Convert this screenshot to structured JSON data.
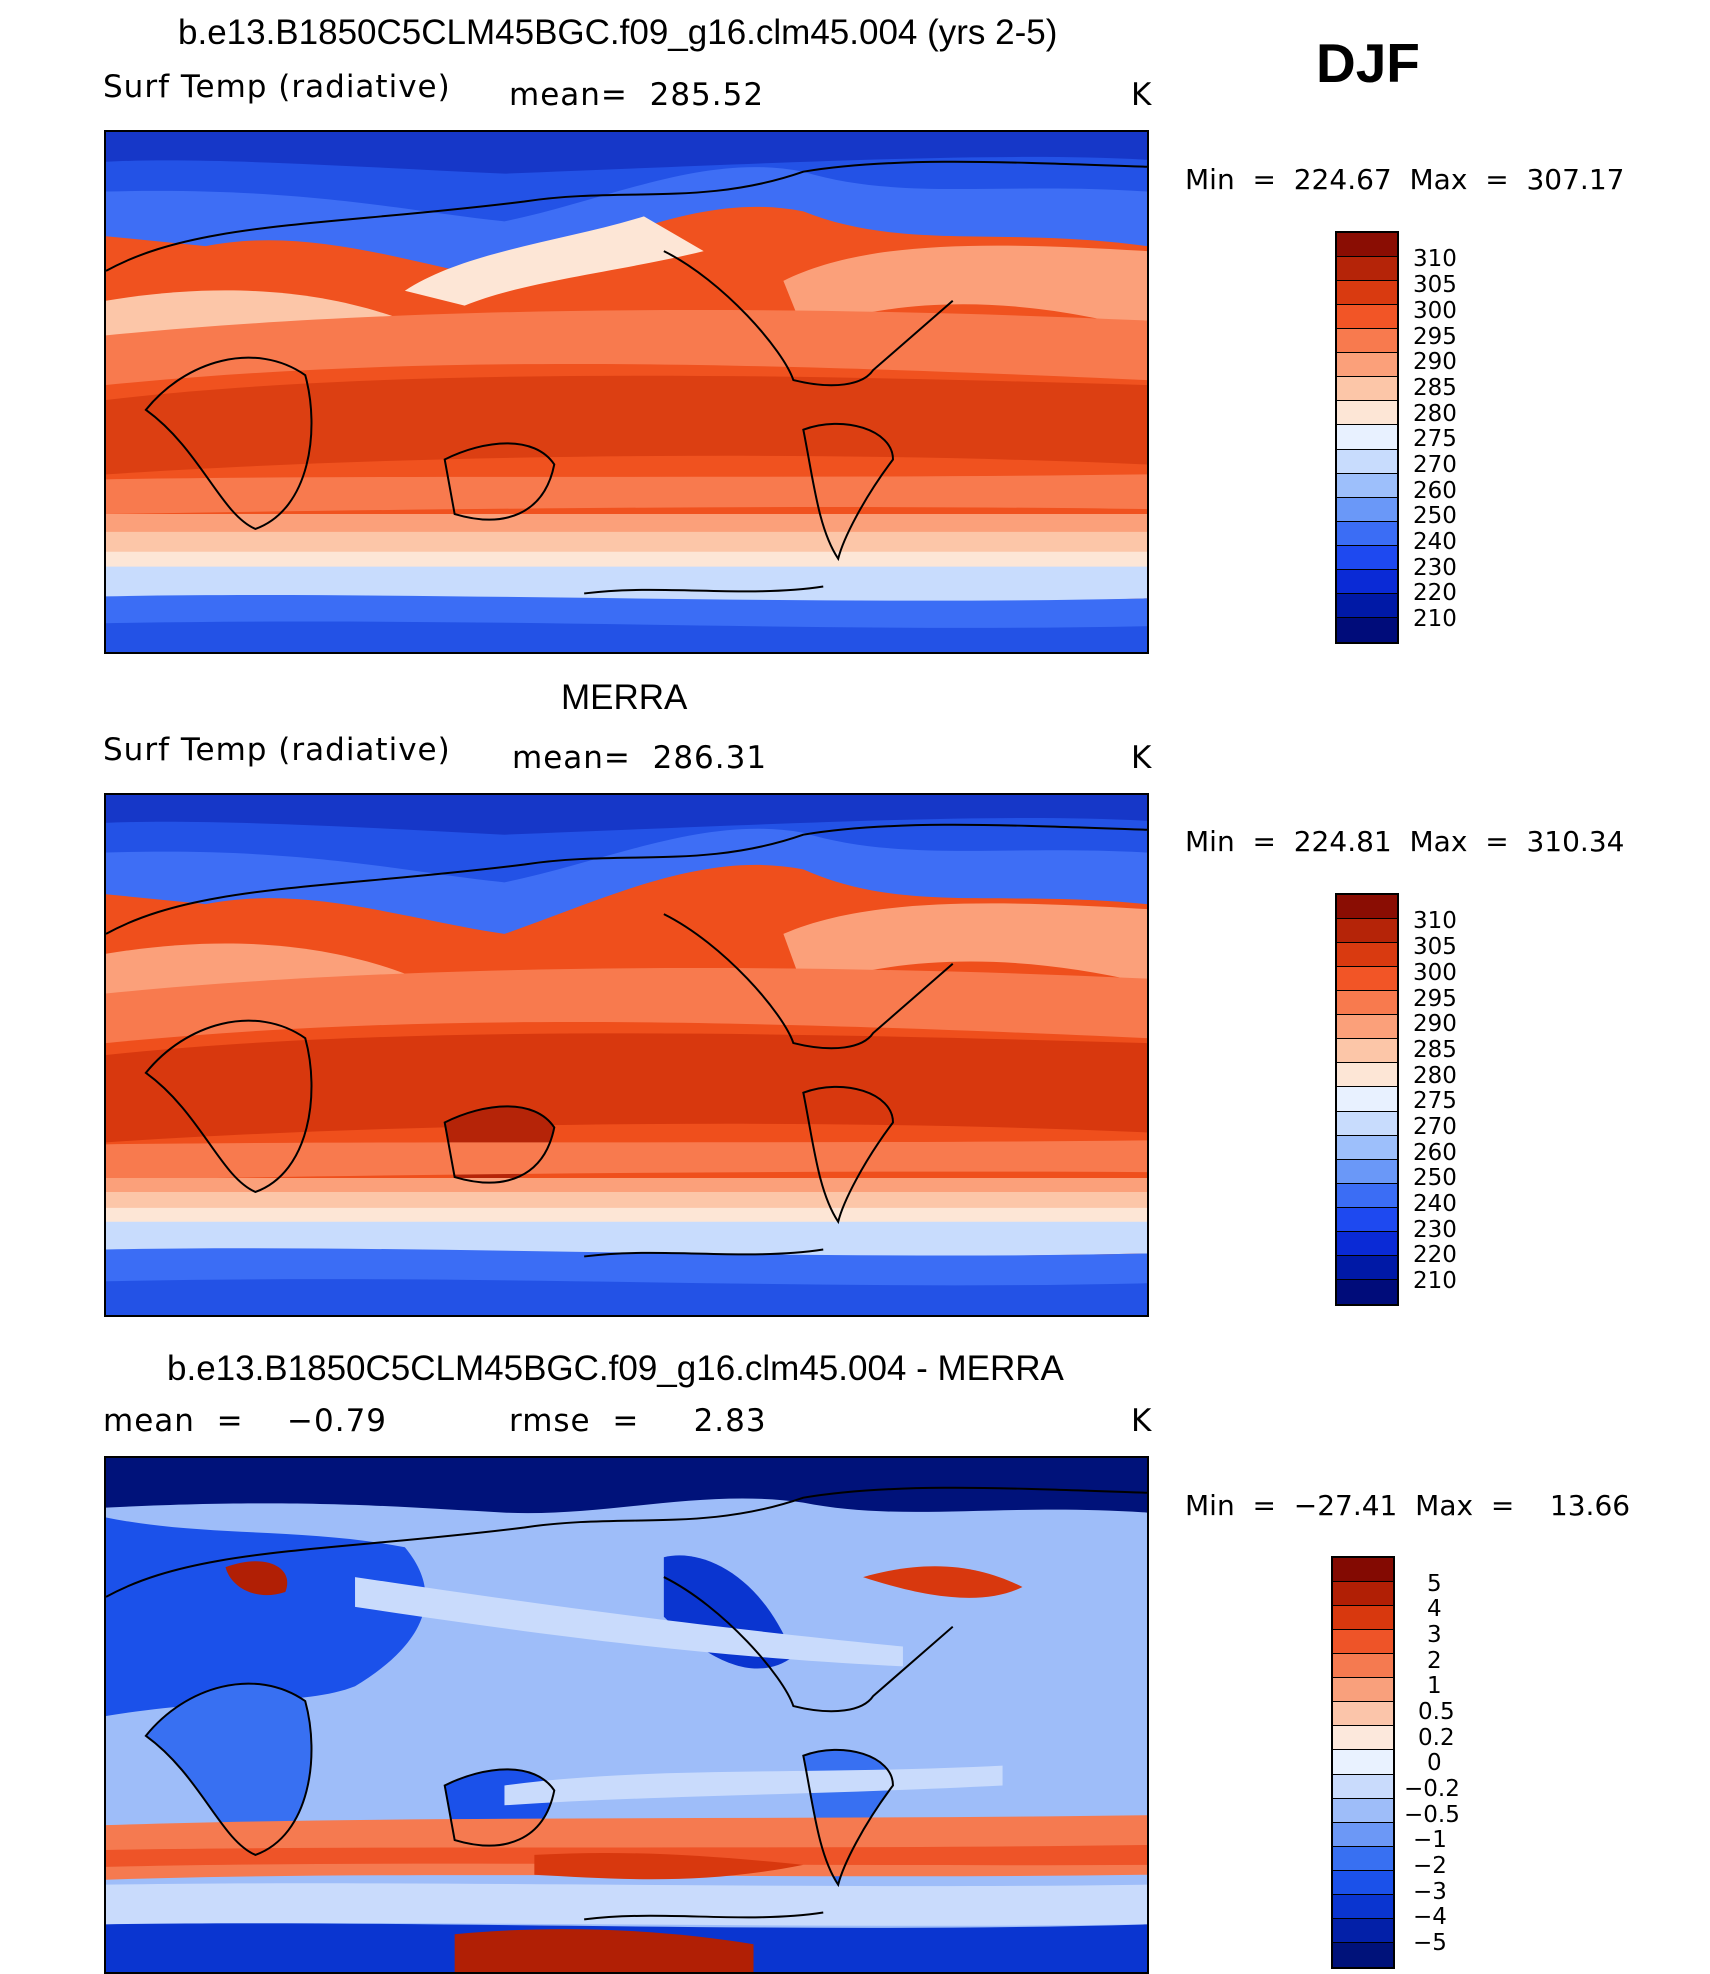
{
  "season": "DJF",
  "colors": {
    "abs_scale": [
      "#000c7a",
      "#0019a6",
      "#0a2ad6",
      "#1e49f0",
      "#3b6df5",
      "#6a98f8",
      "#9dbffb",
      "#c8dcfd",
      "#e8f1ff",
      "#fde6d6",
      "#fcc6a8",
      "#fba07a",
      "#f87a4e",
      "#f25526",
      "#d93a10",
      "#b52408",
      "#8a0d03"
    ],
    "diff_scale": [
      "#00127a",
      "#0320a8",
      "#0a35d0",
      "#1b51ea",
      "#3870f2",
      "#6c98f6",
      "#9ebdf9",
      "#c9dbfc",
      "#e9f2ff",
      "#fce8dc",
      "#fbc5aa",
      "#f9a07c",
      "#f57a50",
      "#ee5428",
      "#d8380e",
      "#b11f05",
      "#830a02"
    ]
  },
  "panels": [
    {
      "id": "model",
      "title": "b.e13.B1850C5CLM45BGC.f09_g16.clm45.004 (yrs 2-5)",
      "left_label": "Surf Temp (radiative)",
      "center_label": "mean=  285.52",
      "units": "K",
      "minmax": "Min  =  224.67  Max  =  307.17",
      "colorbar_labels": [
        "310",
        "305",
        "300",
        "295",
        "290",
        "285",
        "280",
        "275",
        "270",
        "260",
        "250",
        "240",
        "230",
        "220",
        "210"
      ],
      "scale": "abs"
    },
    {
      "id": "obs",
      "title": "MERRA",
      "left_label": "Surf Temp (radiative)",
      "center_label": "mean=  286.31",
      "units": "K",
      "minmax": "Min  =  224.81  Max  =  310.34",
      "colorbar_labels": [
        "310",
        "305",
        "300",
        "295",
        "290",
        "285",
        "280",
        "275",
        "270",
        "260",
        "250",
        "240",
        "230",
        "220",
        "210"
      ],
      "scale": "abs"
    },
    {
      "id": "diff",
      "title": "b.e13.B1850C5CLM45BGC.f09_g16.clm45.004 - MERRA",
      "left_label": "mean  =    −0.79",
      "center_label": "rmse  =     2.83",
      "units": "K",
      "minmax": "Min  =  −27.41  Max  =    13.66",
      "colorbar_labels": [
        "5",
        "4",
        "3",
        "2",
        "1",
        "0.5",
        "0.2",
        "0",
        "−0.2",
        "−0.5",
        "−1",
        "−2",
        "−3",
        "−4",
        "−5"
      ],
      "scale": "diff"
    }
  ]
}
